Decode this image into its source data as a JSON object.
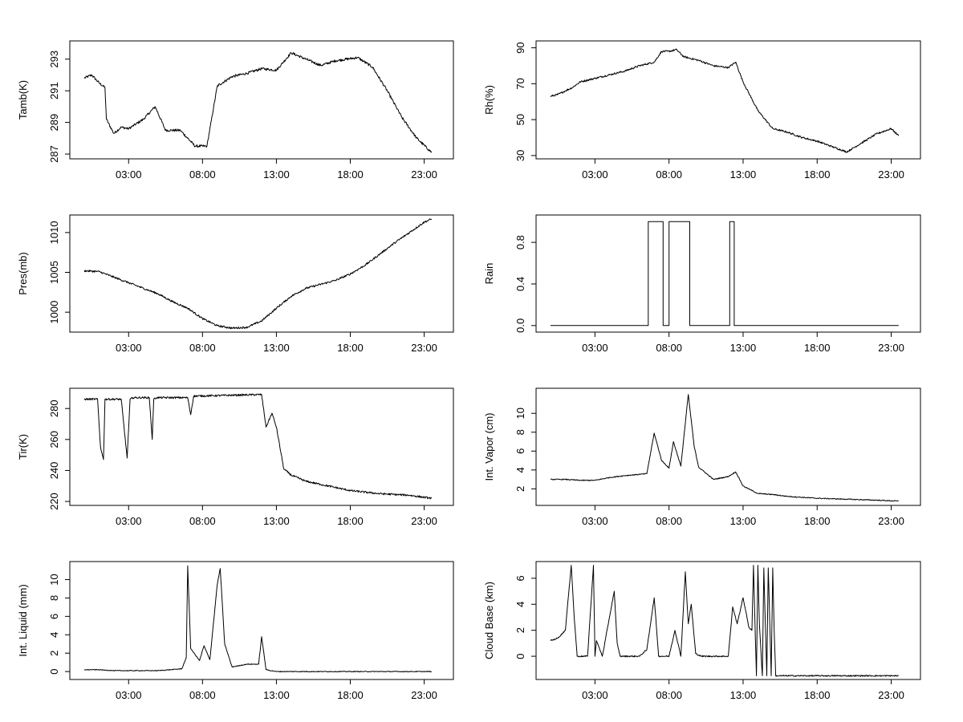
{
  "chart_data": [
    {
      "type": "line",
      "title": "",
      "ylabel": "Tamb(K)",
      "xlabel": "",
      "x_ticks": [
        "03:00",
        "08:00",
        "13:00",
        "18:00",
        "23:00"
      ],
      "y_ticks": [
        "287",
        "289",
        "291",
        "293"
      ],
      "ylim": [
        286.85,
        294.0
      ],
      "y_tick_values": [
        287,
        289,
        291,
        293
      ],
      "series": [
        {
          "name": "Tamb",
          "hours": [
            0,
            0.5,
            1.0,
            1.4,
            1.5,
            2.0,
            2.5,
            3.0,
            4.0,
            4.8,
            5.5,
            6.5,
            7.5,
            8.3,
            9.0,
            10,
            11,
            12,
            13,
            14,
            15,
            16,
            17,
            18.5,
            19.5,
            20.5,
            21.5,
            22.5,
            23.5
          ],
          "values": [
            291.8,
            292.0,
            291.5,
            291.2,
            289.2,
            288.3,
            288.7,
            288.6,
            289.2,
            290.0,
            288.5,
            288.5,
            287.5,
            287.5,
            291.3,
            291.9,
            292.1,
            292.4,
            292.3,
            293.4,
            293.0,
            292.6,
            292.9,
            293.1,
            292.5,
            291.0,
            289.3,
            288.0,
            287.1
          ]
        }
      ]
    },
    {
      "type": "line",
      "title": "",
      "ylabel": "Rh(%)",
      "xlabel": "",
      "x_ticks": [
        "03:00",
        "08:00",
        "13:00",
        "18:00",
        "23:00"
      ],
      "y_ticks": [
        "30",
        "50",
        "70",
        "90"
      ],
      "ylim": [
        29.5,
        92.5
      ],
      "y_tick_values": [
        30,
        50,
        70,
        90
      ],
      "series": [
        {
          "name": "Rh",
          "hours": [
            0,
            0.5,
            1.0,
            1.5,
            2.0,
            3.0,
            4.0,
            5.0,
            6.0,
            7.0,
            7.5,
            8.0,
            8.5,
            9.0,
            10,
            11,
            12,
            12.5,
            13,
            14,
            15,
            16,
            17,
            18,
            19,
            20,
            21,
            22,
            23,
            23.5
          ],
          "values": [
            63,
            64,
            66,
            68,
            71,
            73,
            75,
            77,
            80,
            82,
            88,
            88,
            89,
            85,
            83,
            80,
            79,
            82,
            71,
            55,
            45,
            43,
            40,
            38,
            35,
            32,
            37,
            42,
            45,
            41
          ]
        }
      ]
    },
    {
      "type": "line",
      "title": "",
      "ylabel": "Pres(mb)",
      "xlabel": "",
      "x_ticks": [
        "03:00",
        "08:00",
        "13:00",
        "18:00",
        "23:00"
      ],
      "y_ticks": [
        "1000",
        "1005",
        "1010"
      ],
      "ylim": [
        997.8,
        1011.9
      ],
      "y_tick_values": [
        1000,
        1005,
        1010
      ],
      "series": [
        {
          "name": "Pres",
          "hours": [
            0,
            1,
            2,
            3,
            4,
            5,
            6,
            7,
            8,
            9,
            10,
            11,
            12,
            13,
            14,
            15,
            16,
            17,
            18,
            19,
            20,
            21,
            22,
            23,
            23.5
          ],
          "values": [
            1005.2,
            1005.1,
            1004.4,
            1003.7,
            1003.0,
            1002.3,
            1001.3,
            1000.5,
            999.2,
            998.3,
            998.0,
            998.1,
            998.9,
            1000.5,
            1002.0,
            1003.0,
            1003.5,
            1004.0,
            1004.8,
            1005.9,
            1007.3,
            1008.7,
            1010.0,
            1011.3,
            1011.7
          ]
        }
      ]
    },
    {
      "type": "line",
      "title": "",
      "ylabel": "Rain",
      "xlabel": "",
      "x_ticks": [
        "03:00",
        "08:00",
        "13:00",
        "18:00",
        "23:00"
      ],
      "y_ticks": [
        "0.0",
        "0.4",
        "0.8"
      ],
      "ylim": [
        -0.04,
        1.04
      ],
      "y_tick_values": [
        0,
        0.4,
        0.8
      ],
      "series": [
        {
          "name": "Rain",
          "hours": [
            0,
            6.6,
            6.6,
            7.6,
            7.6,
            8.0,
            8.0,
            9.4,
            9.4,
            12.1,
            12.1,
            12.4,
            12.4,
            23.5
          ],
          "values": [
            0,
            0,
            1,
            1,
            0,
            0,
            1,
            1,
            0,
            0,
            1,
            1,
            0,
            0
          ]
        }
      ]
    },
    {
      "type": "line",
      "title": "",
      "ylabel": "Tir(K)",
      "xlabel": "",
      "x_ticks": [
        "03:00",
        "08:00",
        "13:00",
        "18:00",
        "23:00"
      ],
      "y_ticks": [
        "220",
        "240",
        "260",
        "280"
      ],
      "ylim": [
        219,
        291.5
      ],
      "y_tick_values": [
        220,
        240,
        260,
        280
      ],
      "series": [
        {
          "name": "Tir",
          "hours": [
            0,
            0.9,
            1.1,
            1.3,
            1.4,
            2.5,
            2.9,
            3.1,
            3.3,
            4.4,
            4.6,
            4.7,
            4.9,
            7.0,
            7.2,
            7.4,
            12.0,
            12.3,
            12.7,
            13.0,
            13.5,
            14.0,
            15.0,
            16.0,
            17.0,
            18.0,
            20.0,
            22.0,
            23.5
          ],
          "values": [
            286,
            286,
            255,
            247,
            286,
            286,
            248,
            286,
            287,
            287,
            260,
            286,
            287,
            287,
            276,
            288,
            289,
            268,
            277,
            268,
            241,
            237,
            233,
            231,
            229,
            227,
            225,
            224,
            222
          ]
        }
      ]
    },
    {
      "type": "line",
      "title": "",
      "ylabel": "Int. Vapor (cm)",
      "xlabel": "",
      "x_ticks": [
        "03:00",
        "08:00",
        "13:00",
        "18:00",
        "23:00"
      ],
      "y_ticks": [
        "2",
        "4",
        "6",
        "8",
        "10"
      ],
      "ylim": [
        0.5,
        12.4
      ],
      "y_tick_values": [
        2,
        4,
        6,
        8,
        10
      ],
      "series": [
        {
          "name": "Int. Vapor",
          "hours": [
            0,
            1,
            2,
            3,
            4,
            5,
            6.5,
            7.0,
            7.5,
            8.0,
            8.3,
            8.8,
            9.3,
            9.7,
            10.0,
            11.0,
            12.0,
            12.5,
            13.0,
            14.0,
            15.0,
            16.0,
            18.0,
            20.0,
            22.0,
            23.5
          ],
          "values": [
            3.0,
            3.0,
            2.9,
            2.9,
            3.2,
            3.4,
            3.6,
            7.9,
            5.0,
            4.2,
            7.0,
            4.4,
            12.0,
            6.5,
            4.3,
            3.0,
            3.3,
            3.8,
            2.3,
            1.5,
            1.4,
            1.2,
            1.0,
            0.9,
            0.8,
            0.7
          ]
        }
      ]
    },
    {
      "type": "line",
      "title": "",
      "ylabel": "Int. Liquid (mm)",
      "xlabel": "",
      "x_ticks": [
        "03:00",
        "08:00",
        "13:00",
        "18:00",
        "23:00"
      ],
      "y_ticks": [
        "0",
        "2",
        "4",
        "6",
        "8",
        "10"
      ],
      "ylim": [
        -0.6,
        11.7
      ],
      "y_tick_values": [
        0,
        2,
        4,
        6,
        8,
        10
      ],
      "series": [
        {
          "name": "Int. Liquid",
          "hours": [
            0,
            1,
            2,
            3,
            4,
            5,
            6.6,
            6.9,
            7.0,
            7.2,
            7.8,
            8.1,
            8.5,
            9.0,
            9.2,
            9.5,
            10.0,
            11.0,
            11.8,
            12.0,
            12.3,
            13.0,
            23.5
          ],
          "values": [
            0.2,
            0.2,
            0.1,
            0.1,
            0.1,
            0.1,
            0.3,
            1.5,
            11.5,
            2.5,
            1.2,
            2.8,
            1.3,
            9.5,
            11.2,
            3.0,
            0.5,
            0.8,
            0.8,
            3.8,
            0.2,
            0.0,
            0.0
          ]
        }
      ]
    },
    {
      "type": "line",
      "title": "",
      "ylabel": "Cloud Base (km)",
      "xlabel": "",
      "x_ticks": [
        "03:00",
        "08:00",
        "13:00",
        "18:00",
        "23:00"
      ],
      "y_ticks": [
        "0",
        "2",
        "4",
        "6"
      ],
      "ylim": [
        -1.6,
        7.1
      ],
      "y_tick_values": [
        0,
        2,
        4,
        6
      ],
      "series": [
        {
          "name": "Cloud Base",
          "hours": [
            0,
            0.5,
            1.0,
            1.4,
            1.6,
            1.8,
            2.0,
            2.5,
            2.9,
            3.0,
            3.1,
            3.5,
            4.3,
            4.5,
            4.7,
            5.0,
            6.0,
            6.5,
            7.0,
            7.3,
            7.5,
            8.0,
            8.4,
            8.8,
            9.1,
            9.3,
            9.5,
            9.8,
            10.2,
            11.0,
            12.0,
            12.3,
            12.6,
            13.0,
            13.4,
            13.6,
            13.7,
            13.9,
            14.0,
            14.1,
            14.3,
            14.4,
            14.6,
            14.7,
            14.9,
            15.0,
            15.1,
            15.2,
            15.3,
            23.5
          ],
          "values": [
            1.2,
            1.4,
            2.0,
            7.0,
            3.0,
            0.0,
            0.0,
            0.0,
            7.0,
            0.0,
            1.2,
            0.0,
            5.0,
            1.0,
            0.0,
            0.0,
            0.0,
            0.5,
            4.5,
            0.0,
            0.0,
            0.0,
            2.0,
            0.0,
            6.5,
            2.5,
            4.0,
            0.2,
            0.0,
            0.0,
            0.0,
            3.8,
            2.5,
            4.5,
            2.2,
            2.0,
            7.0,
            -1.5,
            7.0,
            2.5,
            -1.5,
            6.8,
            -1.5,
            6.8,
            -1.5,
            6.8,
            2.0,
            -1.5,
            -1.5,
            -1.5
          ]
        }
      ]
    }
  ]
}
